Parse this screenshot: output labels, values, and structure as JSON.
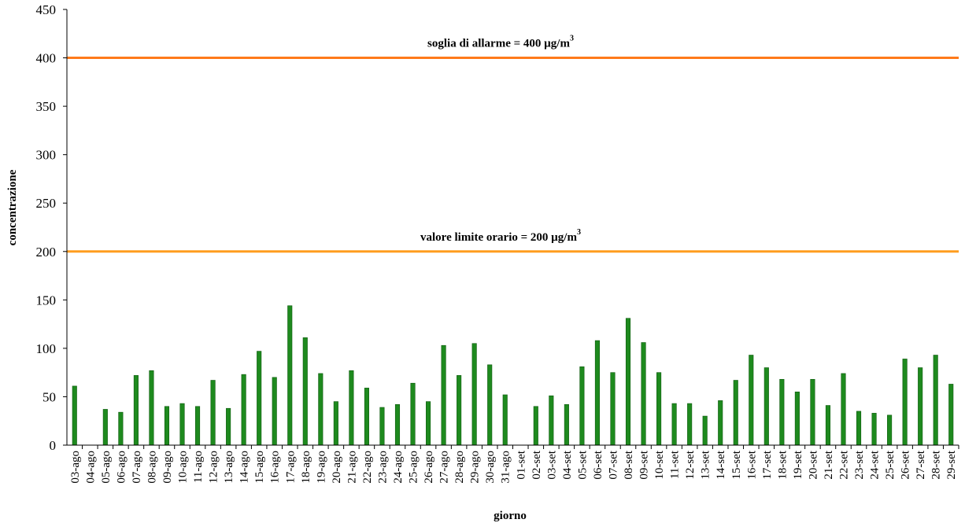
{
  "chart_data": {
    "type": "bar",
    "xlabel": "giorno",
    "ylabel": "concentrazione",
    "ylim": [
      0,
      450
    ],
    "yticks": [
      0,
      50,
      100,
      150,
      200,
      250,
      300,
      350,
      400,
      450
    ],
    "grid": false,
    "bar_color": "#1e8a1e",
    "categories": [
      "03-ago",
      "04-ago",
      "05-ago",
      "06-ago",
      "07-ago",
      "08-ago",
      "09-ago",
      "10-ago",
      "11-ago",
      "12-ago",
      "13-ago",
      "14-ago",
      "15-ago",
      "16-ago",
      "17-ago",
      "18-ago",
      "19-ago",
      "20-ago",
      "21-ago",
      "22-ago",
      "23-ago",
      "24-ago",
      "25-ago",
      "26-ago",
      "27-ago",
      "28-ago",
      "29-ago",
      "30-ago",
      "31-ago",
      "01-set",
      "02-set",
      "03-set",
      "04-set",
      "05-set",
      "06-set",
      "07-set",
      "08-set",
      "09-set",
      "10-set",
      "11-set",
      "12-set",
      "13-set",
      "14-set",
      "15-set",
      "16-set",
      "17-set",
      "18-set",
      "19-set",
      "20-set",
      "21-set",
      "22-set",
      "23-set",
      "24-set",
      "25-set",
      "26-set",
      "27-set",
      "28-set",
      "29-set"
    ],
    "values": [
      61,
      null,
      37,
      34,
      72,
      77,
      40,
      43,
      40,
      67,
      38,
      73,
      97,
      70,
      144,
      111,
      74,
      45,
      77,
      59,
      39,
      42,
      64,
      45,
      103,
      72,
      105,
      83,
      52,
      null,
      40,
      51,
      42,
      81,
      108,
      75,
      131,
      106,
      75,
      43,
      43,
      30,
      46,
      67,
      93,
      80,
      68,
      55,
      68,
      41,
      74,
      35,
      33,
      31,
      89,
      80,
      93,
      63
    ],
    "reference_lines": [
      {
        "value": 400,
        "label": "soglia di allarme = 400 µg/m",
        "sup": "3",
        "color": "#ff7a1a"
      },
      {
        "value": 200,
        "label": "valore limite orario = 200 µg/m",
        "sup": "3",
        "color": "#ff9d1f"
      }
    ]
  }
}
